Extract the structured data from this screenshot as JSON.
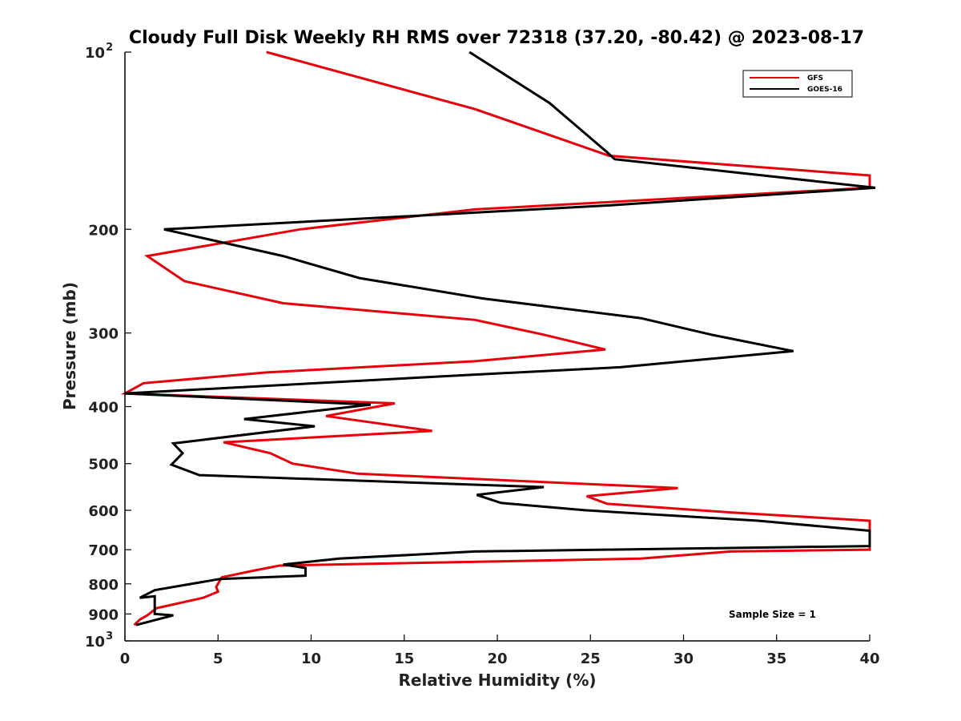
{
  "chart_data": {
    "type": "line",
    "title": "Cloudy Full Disk Weekly RH RMS over 72318 (37.20, -80.42) @ 2023-08-17",
    "xlabel": "Relative Humidity (%)",
    "ylabel": "Pressure (mb)",
    "xlim": [
      0,
      40
    ],
    "ylim": [
      100,
      1000
    ],
    "yscale": "log",
    "yreversed": true,
    "x_ticks": [
      "0",
      "5",
      "10",
      "15",
      "20",
      "25",
      "30",
      "35",
      "40"
    ],
    "y_ticks": [
      {
        "value": 100,
        "base": "10",
        "exp": "2"
      },
      {
        "value": 200,
        "label": "200"
      },
      {
        "value": 300,
        "label": "300"
      },
      {
        "value": 400,
        "label": "400"
      },
      {
        "value": 500,
        "label": "500"
      },
      {
        "value": 600,
        "label": "600"
      },
      {
        "value": 700,
        "label": "700"
      },
      {
        "value": 800,
        "label": "800"
      },
      {
        "value": 900,
        "label": "900"
      },
      {
        "value": 1000,
        "base": "10",
        "exp": "3"
      }
    ],
    "legend_position": "top-right",
    "annotation": "Sample Size = 1",
    "series": [
      {
        "name": "GFS",
        "color": "#e8000b",
        "points": [
          [
            7.6,
            100
          ],
          [
            18.8,
            125
          ],
          [
            26.0,
            150
          ],
          [
            40.0,
            162
          ],
          [
            40.0,
            170
          ],
          [
            18.8,
            185
          ],
          [
            9.4,
            200
          ],
          [
            1.2,
            222
          ],
          [
            3.2,
            245
          ],
          [
            8.5,
            267
          ],
          [
            18.8,
            285
          ],
          [
            22.5,
            302
          ],
          [
            25.8,
            320
          ],
          [
            18.8,
            335
          ],
          [
            7.6,
            350
          ],
          [
            1.0,
            365
          ],
          [
            0.0,
            380
          ],
          [
            14.5,
            395
          ],
          [
            10.8,
            415
          ],
          [
            16.5,
            440
          ],
          [
            5.3,
            460
          ],
          [
            7.8,
            480
          ],
          [
            9.0,
            500
          ],
          [
            12.5,
            520
          ],
          [
            29.7,
            550
          ],
          [
            24.8,
            568
          ],
          [
            25.9,
            585
          ],
          [
            32.5,
            605
          ],
          [
            40.0,
            625
          ],
          [
            40.0,
            700
          ],
          [
            32.5,
            705
          ],
          [
            27.7,
            725
          ],
          [
            8.3,
            745
          ],
          [
            6.9,
            760
          ],
          [
            5.2,
            780
          ],
          [
            4.9,
            810
          ],
          [
            5.0,
            825
          ],
          [
            4.2,
            845
          ],
          [
            1.7,
            880
          ],
          [
            1.2,
            905
          ],
          [
            0.8,
            920
          ],
          [
            0.5,
            940
          ]
        ]
      },
      {
        "name": "GOES-16",
        "color": "#000000",
        "points": [
          [
            18.5,
            100
          ],
          [
            22.8,
            122
          ],
          [
            25.9,
            148
          ],
          [
            26.3,
            152
          ],
          [
            40.3,
            170
          ],
          [
            26.1,
            182
          ],
          [
            2.1,
            200
          ],
          [
            8.5,
            222
          ],
          [
            12.6,
            242
          ],
          [
            19.2,
            262
          ],
          [
            27.7,
            283
          ],
          [
            31.5,
            302
          ],
          [
            35.9,
            322
          ],
          [
            26.6,
            343
          ],
          [
            18.8,
            353
          ],
          [
            0.0,
            380
          ],
          [
            13.2,
            397
          ],
          [
            6.4,
            420
          ],
          [
            10.2,
            432
          ],
          [
            2.6,
            462
          ],
          [
            3.1,
            480
          ],
          [
            2.5,
            502
          ],
          [
            4.0,
            523
          ],
          [
            22.5,
            548
          ],
          [
            18.9,
            565
          ],
          [
            20.2,
            583
          ],
          [
            24.7,
            600
          ],
          [
            34.0,
            625
          ],
          [
            40.0,
            650
          ],
          [
            40.0,
            690
          ],
          [
            18.8,
            705
          ],
          [
            11.5,
            725
          ],
          [
            8.5,
            742
          ],
          [
            9.7,
            752
          ],
          [
            9.7,
            775
          ],
          [
            5.1,
            785
          ],
          [
            1.6,
            820
          ],
          [
            0.8,
            845
          ],
          [
            1.6,
            840
          ],
          [
            1.6,
            900
          ],
          [
            2.6,
            905
          ],
          [
            0.6,
            940
          ]
        ]
      }
    ]
  }
}
